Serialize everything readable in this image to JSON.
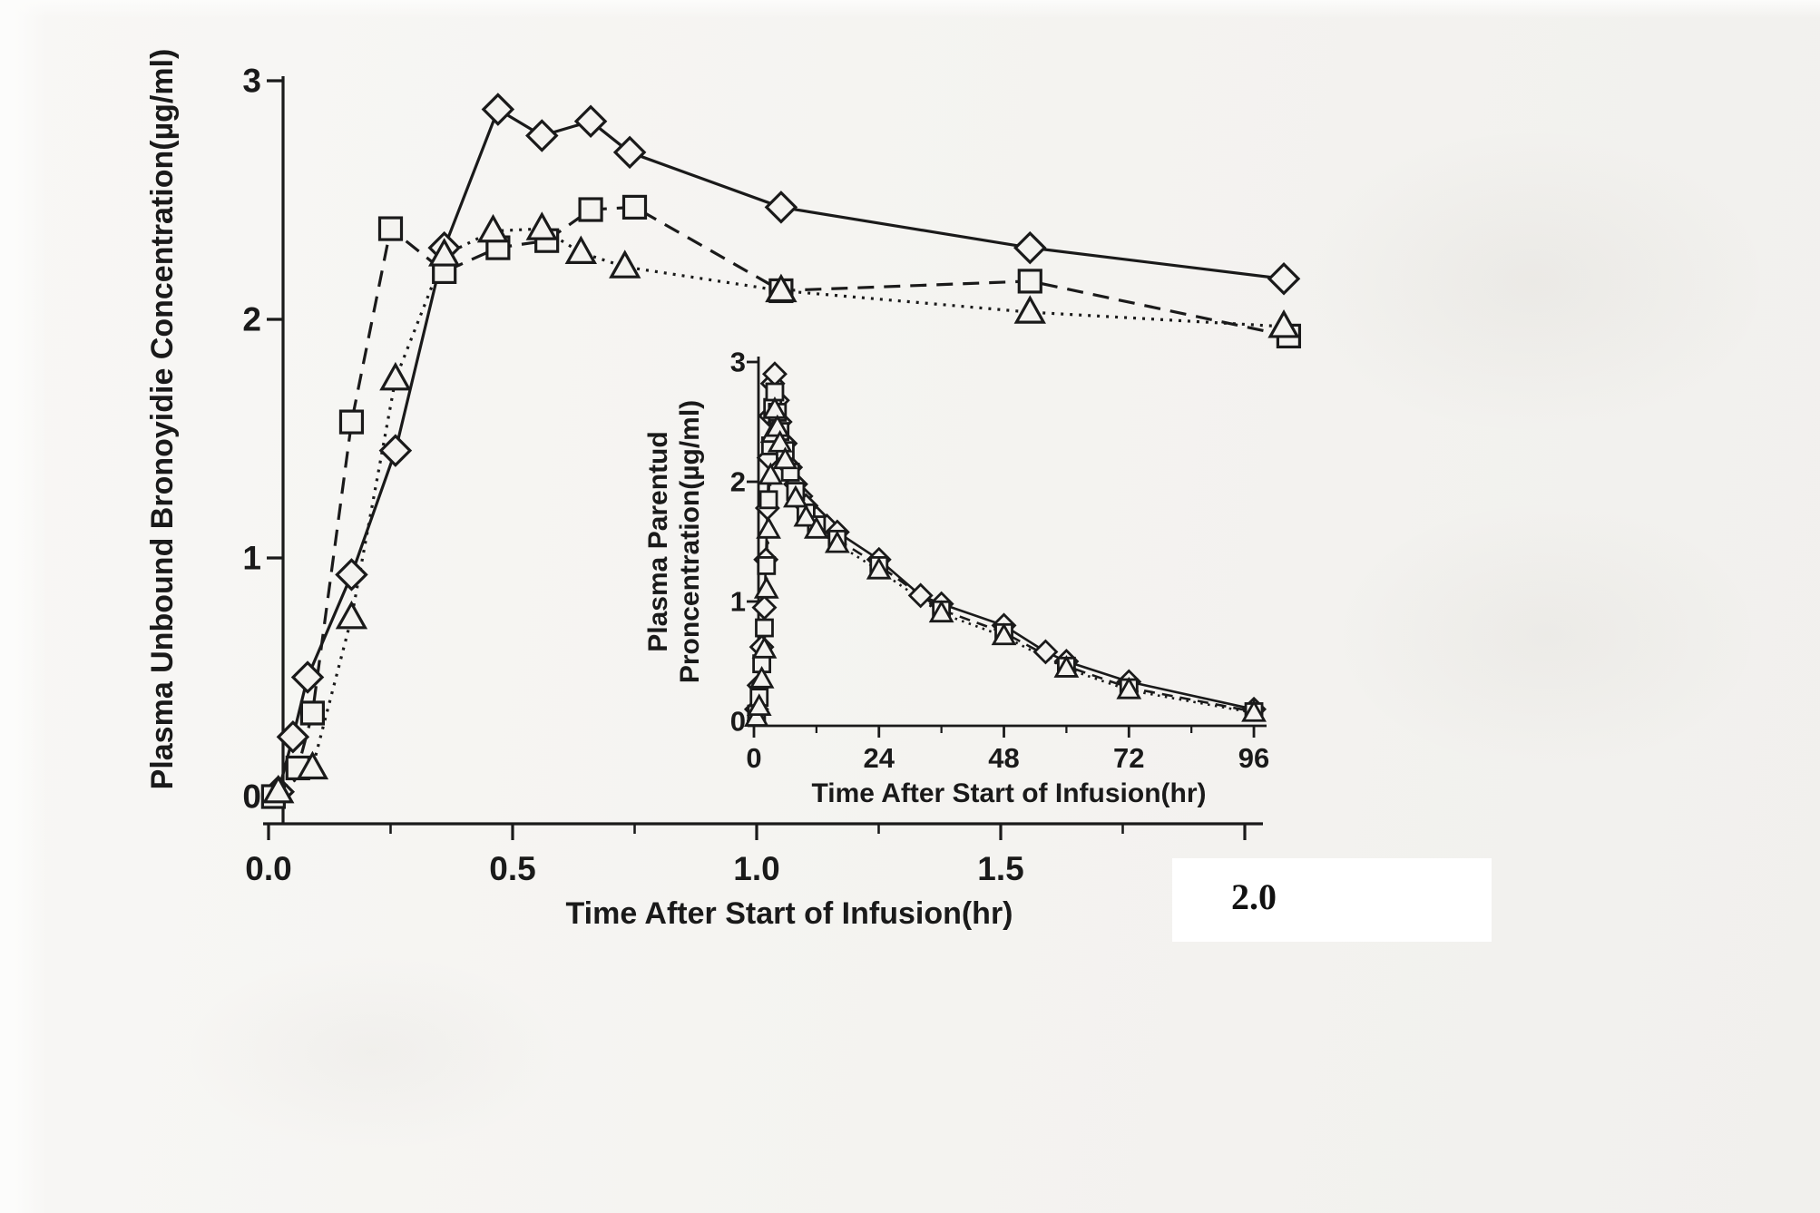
{
  "page": {
    "background_color": "#f4f3f0",
    "paper_color": "#ffffff",
    "ink_color": "#1a1a1a",
    "patch": {
      "label": "2.0"
    }
  },
  "chart_data": [
    {
      "id": "main",
      "type": "line",
      "title": "",
      "xlabel": "Time After Start of Infusion(hr)",
      "ylabel": "Plasma Unbound Bronoyidie Concentration(µg/ml)",
      "xlim": [
        0,
        2.1
      ],
      "ylim": [
        0,
        3
      ],
      "xticks": [
        0,
        0.5,
        1,
        1.5,
        2
      ],
      "xtick_labels": [
        "0.0",
        "0.5",
        "1.0",
        "1.5",
        "2.0"
      ],
      "minor_xticks": [
        0.25,
        0.75,
        1.25,
        1.75
      ],
      "yticks": [
        0,
        1,
        2,
        3
      ],
      "ytick_labels": [
        "0",
        "1",
        "2",
        "3"
      ],
      "grid": false,
      "legend": "none",
      "series": [
        {
          "name": "diamond",
          "marker": "diamond",
          "line": "solid",
          "points": [
            [
              0.02,
              0.02
            ],
            [
              0.05,
              0.25
            ],
            [
              0.08,
              0.5
            ],
            [
              0.17,
              0.93
            ],
            [
              0.26,
              1.45
            ],
            [
              0.36,
              2.3
            ],
            [
              0.47,
              2.88
            ],
            [
              0.56,
              2.77
            ],
            [
              0.66,
              2.83
            ],
            [
              0.74,
              2.7
            ],
            [
              1.05,
              2.47
            ],
            [
              1.56,
              2.3
            ],
            [
              2.08,
              2.17
            ]
          ]
        },
        {
          "name": "square",
          "marker": "square",
          "line": "dashed",
          "points": [
            [
              0.01,
              0.0
            ],
            [
              0.06,
              0.12
            ],
            [
              0.09,
              0.35
            ],
            [
              0.17,
              1.57
            ],
            [
              0.25,
              2.38
            ],
            [
              0.36,
              2.2
            ],
            [
              0.47,
              2.3
            ],
            [
              0.57,
              2.33
            ],
            [
              0.66,
              2.46
            ],
            [
              0.75,
              2.47
            ],
            [
              1.05,
              2.12
            ],
            [
              1.56,
              2.16
            ],
            [
              2.09,
              1.93
            ]
          ]
        },
        {
          "name": "triangle",
          "marker": "triangle",
          "line": "dotted",
          "points": [
            [
              0.02,
              0.02
            ],
            [
              0.09,
              0.12
            ],
            [
              0.17,
              0.75
            ],
            [
              0.26,
              1.75
            ],
            [
              0.36,
              2.27
            ],
            [
              0.46,
              2.37
            ],
            [
              0.56,
              2.38
            ],
            [
              0.64,
              2.28
            ],
            [
              0.73,
              2.22
            ],
            [
              1.05,
              2.12
            ],
            [
              1.56,
              2.03
            ],
            [
              2.08,
              1.97
            ]
          ]
        }
      ]
    },
    {
      "id": "inset",
      "type": "line",
      "title": "",
      "xlabel": "Time After Start of Infusion(hr)",
      "ylabel_lines": [
        "Plasma Parentud",
        "Proncentration(µg/ml)"
      ],
      "xlim": [
        0,
        96
      ],
      "ylim": [
        0,
        3
      ],
      "xticks": [
        0,
        24,
        48,
        72,
        96
      ],
      "xtick_labels": [
        "0",
        "24",
        "48",
        "72",
        "96"
      ],
      "minor_xticks": [
        12,
        36,
        60,
        84
      ],
      "yticks": [
        0,
        1,
        2,
        3
      ],
      "ytick_labels": [
        "0",
        "1",
        "2",
        "3"
      ],
      "grid": false,
      "legend": "none",
      "series": [
        {
          "name": "diamond",
          "marker": "diamond",
          "line": "solid",
          "points": [
            [
              0.5,
              0.1
            ],
            [
              1,
              0.3
            ],
            [
              1.5,
              0.62
            ],
            [
              2,
              0.95
            ],
            [
              2.3,
              1.35
            ],
            [
              2.6,
              1.78
            ],
            [
              2.9,
              2.2
            ],
            [
              3.2,
              2.55
            ],
            [
              3.6,
              2.82
            ],
            [
              4,
              2.9
            ],
            [
              4.5,
              2.68
            ],
            [
              5,
              2.5
            ],
            [
              6,
              2.32
            ],
            [
              7,
              2.12
            ],
            [
              8,
              1.98
            ],
            [
              9,
              1.88
            ],
            [
              10,
              1.8
            ],
            [
              12,
              1.7
            ],
            [
              14,
              1.63
            ],
            [
              16,
              1.58
            ],
            [
              24,
              1.35
            ],
            [
              32,
              1.05
            ],
            [
              36,
              0.98
            ],
            [
              48,
              0.8
            ],
            [
              56,
              0.58
            ],
            [
              60,
              0.5
            ],
            [
              72,
              0.33
            ],
            [
              96,
              0.1
            ]
          ]
        },
        {
          "name": "square",
          "marker": "square",
          "line": "dashed",
          "points": [
            [
              0.5,
              0.06
            ],
            [
              1,
              0.2
            ],
            [
              1.5,
              0.48
            ],
            [
              2,
              0.78
            ],
            [
              2.4,
              1.3
            ],
            [
              2.8,
              1.85
            ],
            [
              3.2,
              2.3
            ],
            [
              3.6,
              2.62
            ],
            [
              4,
              2.75
            ],
            [
              4.5,
              2.58
            ],
            [
              5,
              2.42
            ],
            [
              6,
              2.26
            ],
            [
              7,
              2.08
            ],
            [
              8,
              1.92
            ],
            [
              10,
              1.74
            ],
            [
              12,
              1.64
            ],
            [
              16,
              1.52
            ],
            [
              24,
              1.3
            ],
            [
              36,
              0.93
            ],
            [
              48,
              0.74
            ],
            [
              60,
              0.46
            ],
            [
              72,
              0.28
            ],
            [
              96,
              0.08
            ]
          ]
        },
        {
          "name": "triangle",
          "marker": "triangle",
          "line": "dotted",
          "points": [
            [
              0.5,
              0.03
            ],
            [
              1,
              0.12
            ],
            [
              1.5,
              0.35
            ],
            [
              2,
              0.6
            ],
            [
              2.4,
              1.1
            ],
            [
              2.8,
              1.6
            ],
            [
              3.2,
              2.05
            ],
            [
              3.6,
              2.4
            ],
            [
              4,
              2.6
            ],
            [
              4.5,
              2.45
            ],
            [
              5,
              2.32
            ],
            [
              6,
              2.18
            ],
            [
              8,
              1.86
            ],
            [
              10,
              1.7
            ],
            [
              12,
              1.6
            ],
            [
              16,
              1.48
            ],
            [
              24,
              1.26
            ],
            [
              36,
              0.9
            ],
            [
              48,
              0.71
            ],
            [
              60,
              0.44
            ],
            [
              72,
              0.26
            ],
            [
              96,
              0.07
            ]
          ]
        }
      ]
    }
  ]
}
